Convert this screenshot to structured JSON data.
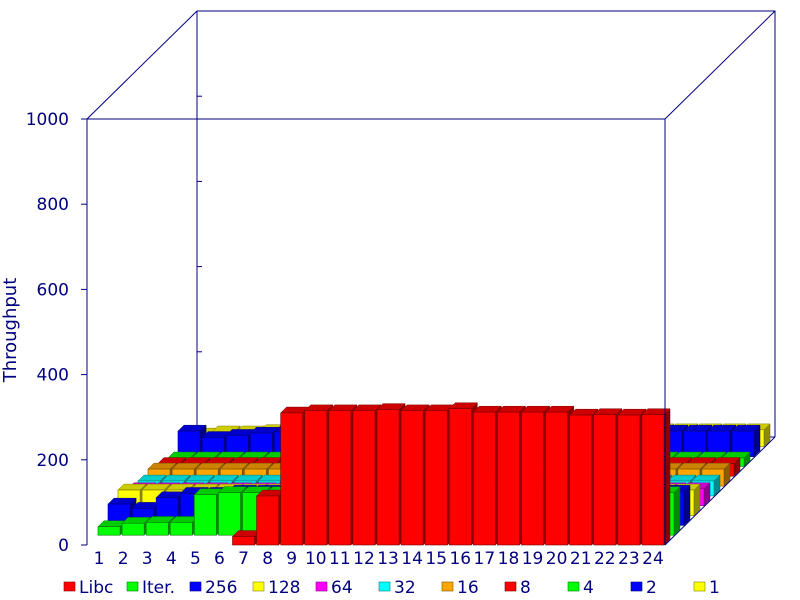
{
  "chart_data": {
    "type": "bar",
    "style": "3d-stacked-depth",
    "title": "",
    "xlabel": "",
    "ylabel": "Throughput",
    "ylim": [
      0,
      1000
    ],
    "yticks": [
      "0",
      "200",
      "400",
      "600",
      "800",
      "1000"
    ],
    "categories": [
      "1",
      "2",
      "3",
      "4",
      "5",
      "6",
      "7",
      "8",
      "9",
      "10",
      "11",
      "12",
      "13",
      "14",
      "15",
      "16",
      "17",
      "18",
      "19",
      "20",
      "21",
      "22",
      "23",
      "24"
    ],
    "legend_position": "bottom",
    "series": [
      {
        "name": "Libc",
        "color": "#ff0000",
        "values": [
          0,
          0,
          0,
          0,
          0,
          0,
          20,
          115,
          310,
          315,
          315,
          315,
          318,
          315,
          315,
          320,
          312,
          312,
          312,
          312,
          305,
          306,
          305,
          306
        ]
      },
      {
        "name": "Iter.",
        "color": "#00ff00",
        "values": [
          20,
          28,
          30,
          30,
          95,
          100,
          100,
          100,
          100,
          100,
          100,
          100,
          100,
          100,
          100,
          100,
          100,
          100,
          100,
          100,
          100,
          100,
          100,
          100
        ]
      },
      {
        "name": "256",
        "color": "#0000ff",
        "values": [
          50,
          40,
          65,
          75,
          75,
          80,
          80,
          80,
          80,
          80,
          80,
          80,
          80,
          80,
          80,
          80,
          80,
          80,
          80,
          80,
          80,
          80,
          80,
          80
        ]
      },
      {
        "name": "128",
        "color": "#ffff00",
        "values": [
          60,
          60,
          60,
          60,
          60,
          60,
          60,
          60,
          60,
          60,
          60,
          60,
          60,
          60,
          60,
          60,
          60,
          60,
          60,
          60,
          60,
          60,
          60,
          60
        ]
      },
      {
        "name": "64",
        "color": "#ff00ff",
        "values": [
          40,
          40,
          40,
          40,
          40,
          40,
          40,
          40,
          40,
          40,
          40,
          40,
          40,
          40,
          40,
          40,
          40,
          40,
          40,
          40,
          40,
          40,
          40,
          40
        ]
      },
      {
        "name": "32",
        "color": "#00ffff",
        "values": [
          35,
          35,
          35,
          35,
          35,
          35,
          35,
          35,
          35,
          35,
          35,
          35,
          35,
          35,
          35,
          35,
          35,
          35,
          35,
          35,
          35,
          35,
          35,
          35
        ]
      },
      {
        "name": "16",
        "color": "#ffa500",
        "values": [
          40,
          40,
          40,
          40,
          40,
          40,
          40,
          40,
          40,
          40,
          40,
          40,
          40,
          40,
          40,
          40,
          40,
          40,
          40,
          40,
          40,
          40,
          40,
          40
        ]
      },
      {
        "name": "8",
        "color": "#ff0000",
        "values": [
          30,
          30,
          30,
          30,
          30,
          30,
          30,
          30,
          30,
          30,
          30,
          30,
          30,
          30,
          30,
          30,
          30,
          30,
          30,
          30,
          30,
          30,
          30,
          30
        ]
      },
      {
        "name": "4",
        "color": "#00ff00",
        "values": [
          20,
          20,
          20,
          20,
          20,
          20,
          20,
          20,
          20,
          20,
          20,
          20,
          20,
          20,
          20,
          20,
          20,
          20,
          20,
          20,
          20,
          20,
          20,
          20
        ]
      },
      {
        "name": "2",
        "color": "#0000ff",
        "values": [
          60,
          45,
          50,
          55,
          58,
          60,
          60,
          60,
          60,
          60,
          60,
          60,
          60,
          60,
          60,
          60,
          60,
          60,
          60,
          60,
          60,
          60,
          60,
          60
        ]
      },
      {
        "name": "1",
        "color": "#ffff00",
        "values": [
          30,
          35,
          35,
          38,
          40,
          40,
          40,
          40,
          40,
          40,
          40,
          40,
          40,
          40,
          40,
          40,
          40,
          40,
          40,
          40,
          40,
          40,
          40,
          40
        ]
      }
    ]
  }
}
